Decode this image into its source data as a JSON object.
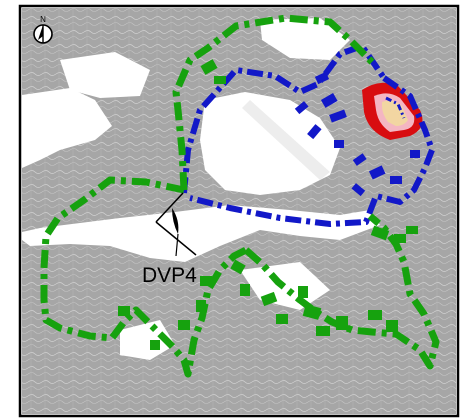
{
  "map": {
    "north_label": "N",
    "viewpoint_label": "DVP4",
    "icons": {
      "north_arrow": "north-arrow-icon",
      "viewpoint_eye": "eye-icon"
    },
    "colors": {
      "background": "#ffffff",
      "land": "#a9a9a9",
      "sea": "#ffffff",
      "frame": "#000000",
      "green_boundary": "#16a20e",
      "blue_boundary": "#1218c8",
      "red_zone": "#d80d10",
      "pink_zone": "#f4b6c2",
      "tan_zone": "#f2d6a2"
    }
  }
}
